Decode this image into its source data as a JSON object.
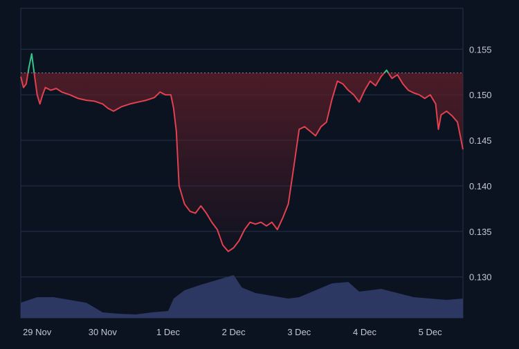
{
  "colors": {
    "background": "#0b1220",
    "grid": "#26324a",
    "price_line_below": "#e3414f",
    "price_line_above": "#35c58a",
    "area_fill_top": "#5a1e29",
    "volume_fill": "#2e3a66",
    "reference_line": "#9aa3b5",
    "tick_text": "#c3c8d2"
  },
  "chart_data": {
    "type": "line",
    "title": "",
    "xlabel": "",
    "ylabel": "",
    "x_ticks": [
      "29 Nov",
      "30 Nov",
      "1 Dec",
      "2 Dec",
      "3 Dec",
      "4 Dec",
      "5 Dec"
    ],
    "y_ticks": [
      "0.155",
      "0.150",
      "0.145",
      "0.140",
      "0.135",
      "0.130"
    ],
    "x_range_days": [
      "28 Nov 18:00",
      "5 Dec 12:00"
    ],
    "ylim": [
      0.1255,
      0.1595
    ],
    "reference_value": 0.1524,
    "grid": "horizontal",
    "series": [
      {
        "kind": "price",
        "points": [
          [
            "28 Nov 18:00",
            0.152
          ],
          [
            "28 Nov 19:00",
            0.1508
          ],
          [
            "28 Nov 20:00",
            0.1512
          ],
          [
            "28 Nov 21:00",
            0.153
          ],
          [
            "28 Nov 22:00",
            0.1545
          ],
          [
            "28 Nov 23:00",
            0.1522
          ],
          [
            "29 Nov 00:00",
            0.15
          ],
          [
            "29 Nov 01:00",
            0.149
          ],
          [
            "29 Nov 02:00",
            0.15
          ],
          [
            "29 Nov 03:00",
            0.1508
          ],
          [
            "29 Nov 05:00",
            0.1505
          ],
          [
            "29 Nov 07:00",
            0.1507
          ],
          [
            "29 Nov 09:00",
            0.1503
          ],
          [
            "29 Nov 12:00",
            0.15
          ],
          [
            "29 Nov 15:00",
            0.1496
          ],
          [
            "29 Nov 18:00",
            0.1494
          ],
          [
            "29 Nov 21:00",
            0.1493
          ],
          [
            "30 Nov 00:00",
            0.149
          ],
          [
            "30 Nov 02:00",
            0.1485
          ],
          [
            "30 Nov 04:00",
            0.1482
          ],
          [
            "30 Nov 07:00",
            0.1487
          ],
          [
            "30 Nov 10:00",
            0.149
          ],
          [
            "30 Nov 13:00",
            0.1492
          ],
          [
            "30 Nov 16:00",
            0.1494
          ],
          [
            "30 Nov 19:00",
            0.1497
          ],
          [
            "30 Nov 21:00",
            0.1503
          ],
          [
            "30 Nov 23:00",
            0.15
          ],
          [
            "1 Dec 01:00",
            0.15
          ],
          [
            "1 Dec 02:00",
            0.1485
          ],
          [
            "1 Dec 03:00",
            0.146
          ],
          [
            "1 Dec 04:00",
            0.14
          ],
          [
            "1 Dec 05:00",
            0.139
          ],
          [
            "1 Dec 06:00",
            0.138
          ],
          [
            "1 Dec 08:00",
            0.1372
          ],
          [
            "1 Dec 10:00",
            0.137
          ],
          [
            "1 Dec 12:00",
            0.1378
          ],
          [
            "1 Dec 14:00",
            0.137
          ],
          [
            "1 Dec 16:00",
            0.136
          ],
          [
            "1 Dec 18:00",
            0.1352
          ],
          [
            "1 Dec 20:00",
            0.1335
          ],
          [
            "1 Dec 22:00",
            0.1328
          ],
          [
            "2 Dec 00:00",
            0.1332
          ],
          [
            "2 Dec 02:00",
            0.134
          ],
          [
            "2 Dec 04:00",
            0.1352
          ],
          [
            "2 Dec 06:00",
            0.136
          ],
          [
            "2 Dec 08:00",
            0.1358
          ],
          [
            "2 Dec 10:00",
            0.136
          ],
          [
            "2 Dec 12:00",
            0.1356
          ],
          [
            "2 Dec 14:00",
            0.136
          ],
          [
            "2 Dec 16:00",
            0.1352
          ],
          [
            "2 Dec 18:00",
            0.1365
          ],
          [
            "2 Dec 20:00",
            0.138
          ],
          [
            "2 Dec 22:00",
            0.142
          ],
          [
            "3 Dec 00:00",
            0.1462
          ],
          [
            "3 Dec 02:00",
            0.1465
          ],
          [
            "3 Dec 04:00",
            0.146
          ],
          [
            "3 Dec 06:00",
            0.1455
          ],
          [
            "3 Dec 08:00",
            0.1465
          ],
          [
            "3 Dec 10:00",
            0.147
          ],
          [
            "3 Dec 12:00",
            0.1495
          ],
          [
            "3 Dec 14:00",
            0.1515
          ],
          [
            "3 Dec 16:00",
            0.1512
          ],
          [
            "3 Dec 18:00",
            0.1505
          ],
          [
            "3 Dec 20:00",
            0.15
          ],
          [
            "3 Dec 22:00",
            0.1492
          ],
          [
            "4 Dec 00:00",
            0.1505
          ],
          [
            "4 Dec 02:00",
            0.1515
          ],
          [
            "4 Dec 04:00",
            0.151
          ],
          [
            "4 Dec 06:00",
            0.152
          ],
          [
            "4 Dec 08:00",
            0.1527
          ],
          [
            "4 Dec 10:00",
            0.1518
          ],
          [
            "4 Dec 12:00",
            0.1522
          ],
          [
            "4 Dec 14:00",
            0.1512
          ],
          [
            "4 Dec 16:00",
            0.1505
          ],
          [
            "4 Dec 18:00",
            0.1502
          ],
          [
            "4 Dec 20:00",
            0.15
          ],
          [
            "4 Dec 22:00",
            0.1496
          ],
          [
            "5 Dec 00:00",
            0.15
          ],
          [
            "5 Dec 02:00",
            0.149
          ],
          [
            "5 Dec 03:00",
            0.1462
          ],
          [
            "5 Dec 04:00",
            0.1478
          ],
          [
            "5 Dec 06:00",
            0.1482
          ],
          [
            "5 Dec 08:00",
            0.1477
          ],
          [
            "5 Dec 10:00",
            0.147
          ],
          [
            "5 Dec 11:00",
            0.1455
          ],
          [
            "5 Dec 12:00",
            0.144
          ]
        ]
      },
      {
        "kind": "volume",
        "points": [
          [
            "28 Nov 18:00",
            0.22
          ],
          [
            "29 Nov 00:00",
            0.3
          ],
          [
            "29 Nov 06:00",
            0.3
          ],
          [
            "29 Nov 12:00",
            0.26
          ],
          [
            "29 Nov 18:00",
            0.22
          ],
          [
            "30 Nov 00:00",
            0.08
          ],
          [
            "30 Nov 06:00",
            0.06
          ],
          [
            "30 Nov 12:00",
            0.05
          ],
          [
            "30 Nov 18:00",
            0.08
          ],
          [
            "1 Dec 00:00",
            0.1
          ],
          [
            "1 Dec 02:00",
            0.28
          ],
          [
            "1 Dec 06:00",
            0.4
          ],
          [
            "1 Dec 12:00",
            0.48
          ],
          [
            "1 Dec 18:00",
            0.55
          ],
          [
            "2 Dec 00:00",
            0.62
          ],
          [
            "2 Dec 03:00",
            0.44
          ],
          [
            "2 Dec 08:00",
            0.36
          ],
          [
            "2 Dec 14:00",
            0.32
          ],
          [
            "2 Dec 20:00",
            0.28
          ],
          [
            "3 Dec 00:00",
            0.3
          ],
          [
            "3 Dec 06:00",
            0.4
          ],
          [
            "3 Dec 12:00",
            0.5
          ],
          [
            "3 Dec 18:00",
            0.52
          ],
          [
            "3 Dec 22:00",
            0.38
          ],
          [
            "4 Dec 06:00",
            0.42
          ],
          [
            "4 Dec 12:00",
            0.36
          ],
          [
            "4 Dec 18:00",
            0.3
          ],
          [
            "5 Dec 00:00",
            0.28
          ],
          [
            "5 Dec 06:00",
            0.26
          ],
          [
            "5 Dec 12:00",
            0.28
          ]
        ]
      }
    ]
  }
}
